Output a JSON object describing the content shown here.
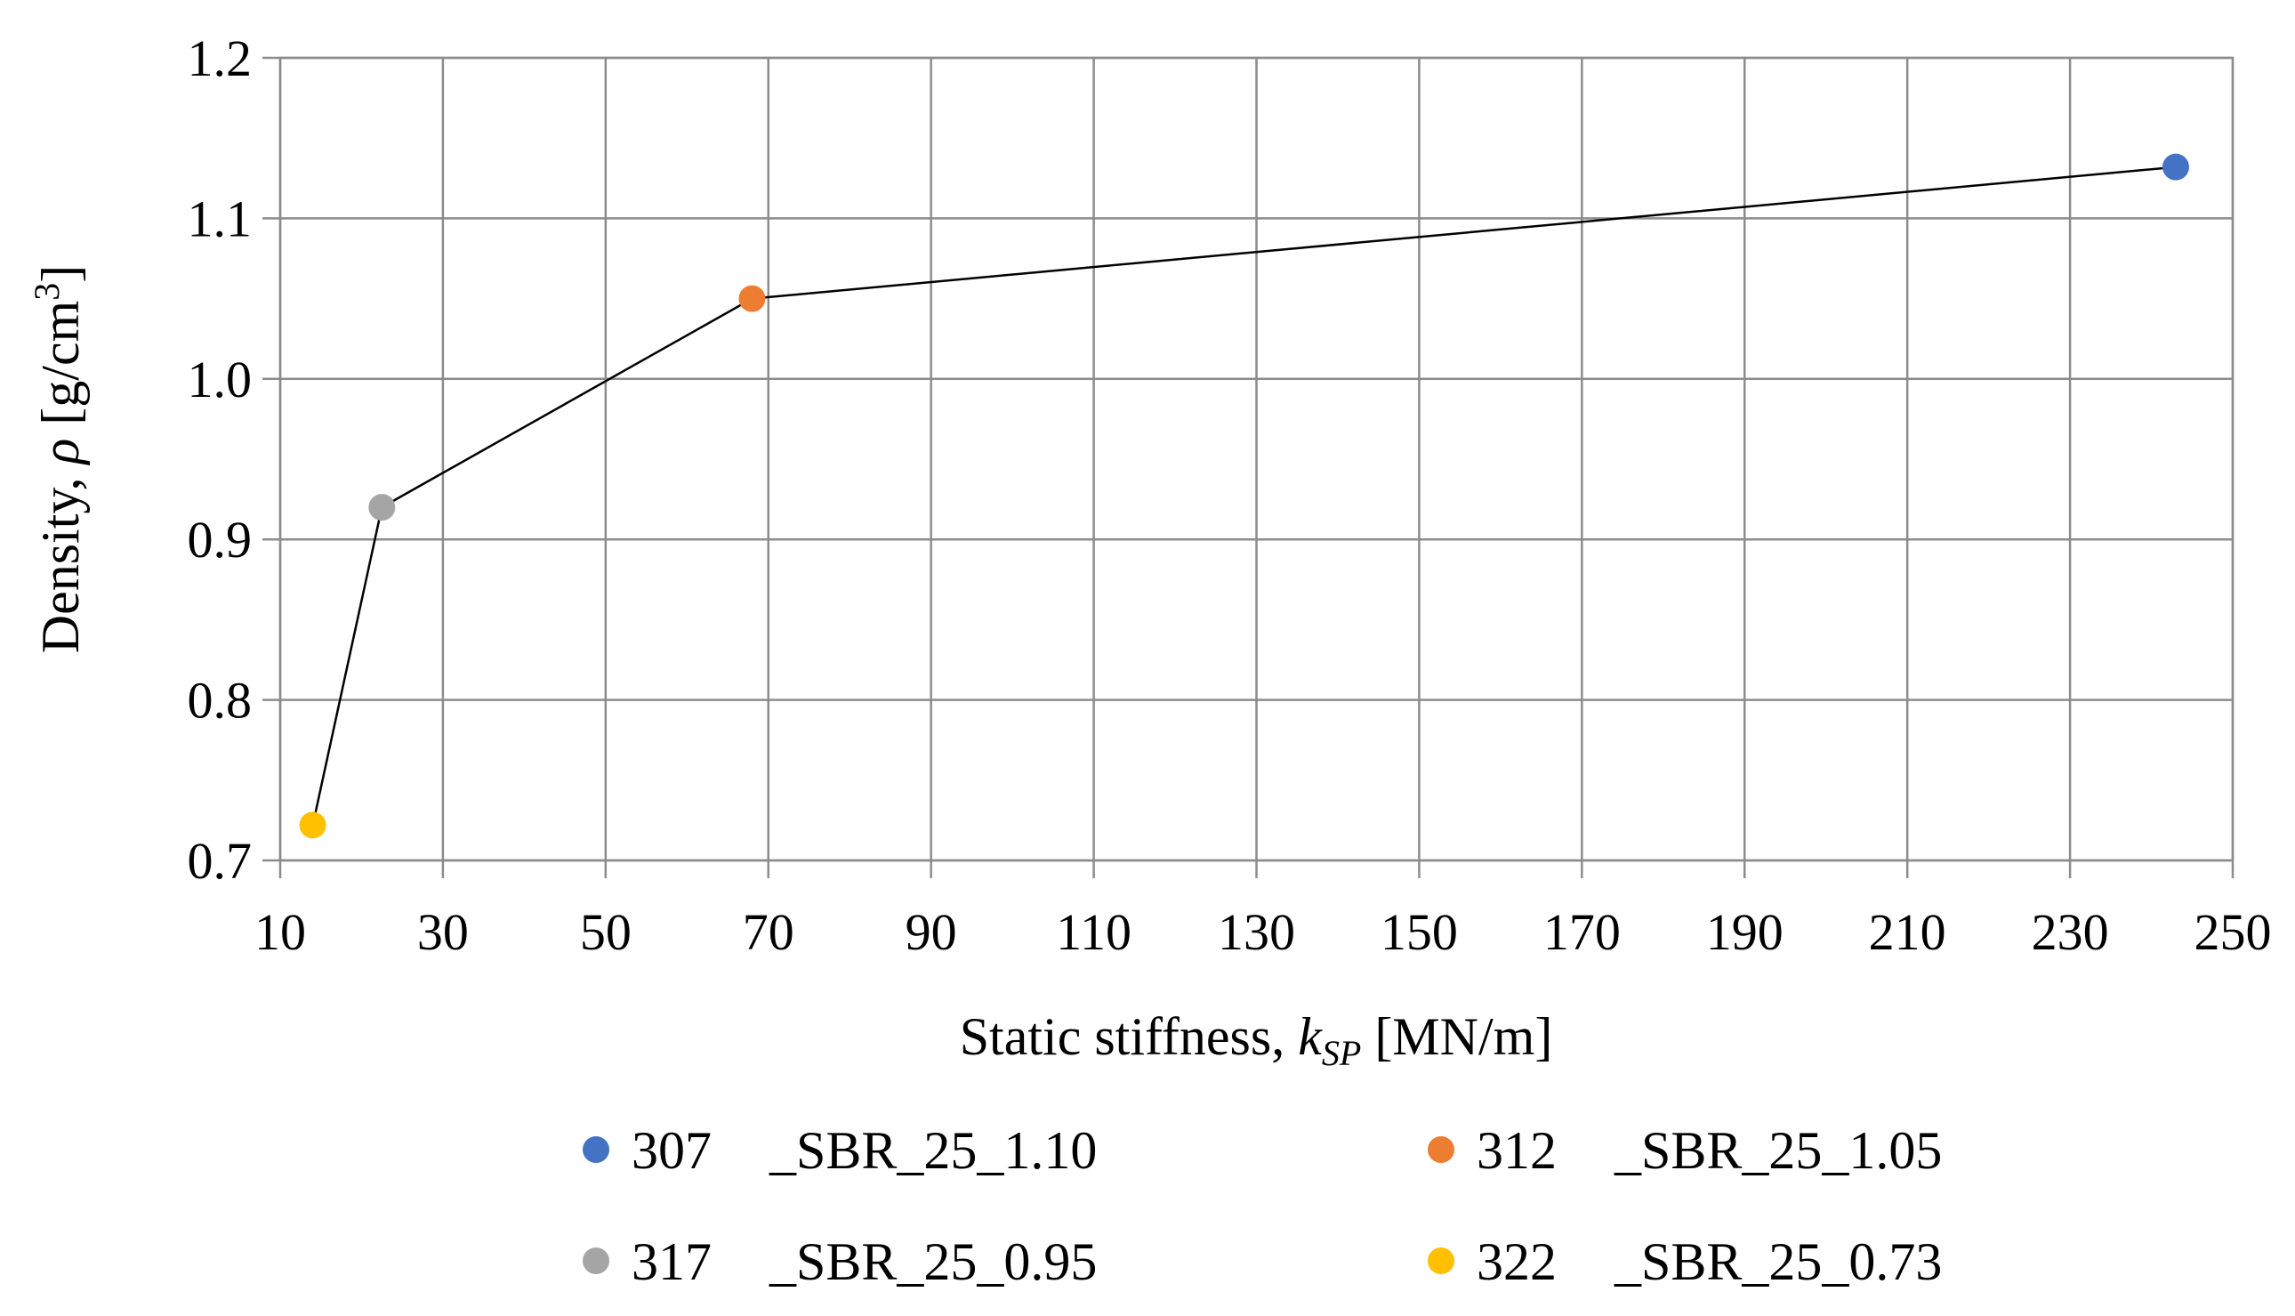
{
  "chart_data": {
    "type": "scatter",
    "xlabel": {
      "main": "Static stiffness, ",
      "var": "k",
      "sub": "SP",
      "unit": " [MN/m]"
    },
    "ylabel": {
      "main": "Density, ",
      "var": "ρ",
      "unit_pre": " [g/cm",
      "sup": "3",
      "unit_post": "]"
    },
    "xlim": [
      10,
      250
    ],
    "ylim": [
      0.7,
      1.2
    ],
    "xticks": [
      10,
      30,
      50,
      70,
      90,
      110,
      130,
      150,
      170,
      190,
      210,
      230,
      250
    ],
    "yticks": [
      "0.7",
      "0.8",
      "0.9",
      "1.0",
      "1.1",
      "1.2"
    ],
    "grid": true,
    "legend_position": "bottom",
    "line_connects_points": true,
    "points": [
      {
        "name": "307",
        "suffix": "_SBR_25_1.10",
        "x": 243,
        "y": 1.132,
        "color": "#4472c4"
      },
      {
        "name": "312",
        "suffix": "_SBR_25_1.05",
        "x": 68,
        "y": 1.05,
        "color": "#ed7d31"
      },
      {
        "name": "317",
        "suffix": "_SBR_25_0.95",
        "x": 22.5,
        "y": 0.92,
        "color": "#a5a5a5"
      },
      {
        "name": "322",
        "suffix": "_SBR_25_0.73",
        "x": 14,
        "y": 0.722,
        "color": "#ffc000"
      }
    ]
  }
}
